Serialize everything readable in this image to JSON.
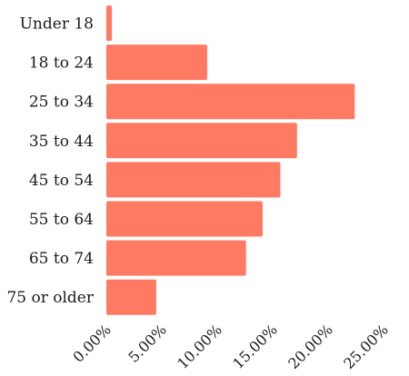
{
  "chart_data": {
    "type": "bar",
    "orientation": "horizontal",
    "categories": [
      "Under 18",
      "18 to 24",
      "25 to 34",
      "35 to 44",
      "45 to 54",
      "55 to 64",
      "65 to 74",
      "75 or older"
    ],
    "values": [
      0.5,
      9.1,
      22.4,
      17.2,
      15.7,
      14.1,
      12.6,
      4.5
    ],
    "xlim": [
      0,
      25
    ],
    "xticks": [
      "0.00%",
      "5.00%",
      "10.00%",
      "15.00%",
      "20.00%",
      "25.00%"
    ],
    "title": "",
    "xlabel": "",
    "ylabel": "",
    "grid": false,
    "bar_color": "#ff7a63"
  }
}
